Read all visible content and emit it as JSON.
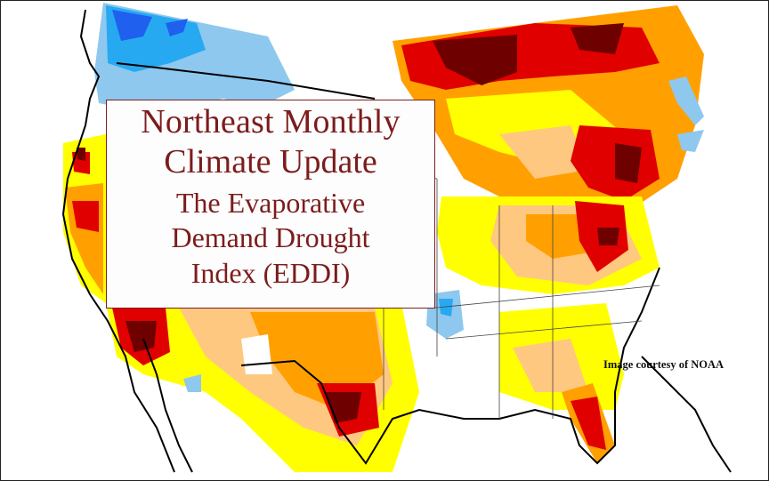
{
  "title": {
    "line1": "Northeast Monthly",
    "line2": "Climate Update",
    "line3": "The Evaporative",
    "line4": "Demand Drought",
    "line5": "Index (EDDI)"
  },
  "credit": "Image courtesy of NOAA",
  "colors": {
    "title_text": "#7c1c1c",
    "title_border": "#7a1f1f",
    "dry_dark": "#6e0000",
    "dry_red": "#e00000",
    "dry_orange": "#ffa000",
    "dry_tan": "#ffc880",
    "dry_yellow": "#ffff00",
    "wet_light": "#8ec8ee",
    "wet_mid": "#27a9f2",
    "wet_dark": "#2060ee"
  }
}
